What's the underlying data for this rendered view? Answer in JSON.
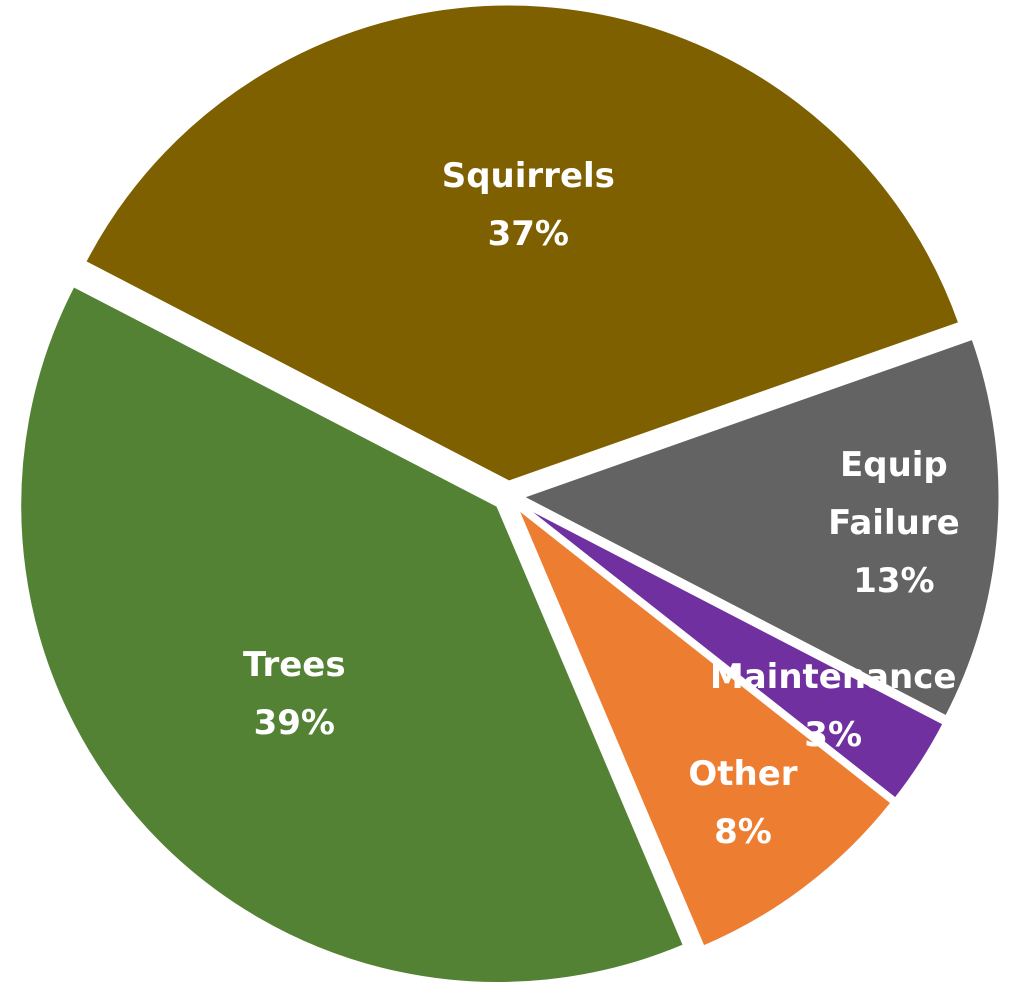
{
  "chart_data": {
    "type": "pie",
    "categories": [
      "Squirrels",
      "Equip Failure",
      "Maintenance",
      "Other",
      "Trees"
    ],
    "values": [
      37,
      13,
      3,
      8,
      39
    ],
    "value_labels": [
      "37%",
      "13%",
      "3%",
      "8%",
      "39%"
    ],
    "colors": [
      "#7f6000",
      "#636363",
      "#7030a0",
      "#ed7d31",
      "#548235"
    ]
  }
}
